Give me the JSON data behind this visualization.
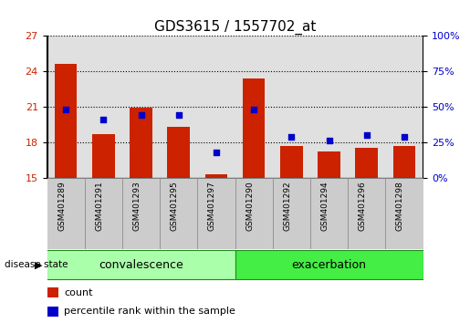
{
  "title": "GDS3615 / 1557702_at",
  "samples": [
    "GSM401289",
    "GSM401291",
    "GSM401293",
    "GSM401295",
    "GSM401297",
    "GSM401290",
    "GSM401292",
    "GSM401294",
    "GSM401296",
    "GSM401298"
  ],
  "count_values": [
    24.6,
    18.7,
    20.9,
    19.3,
    15.3,
    23.4,
    17.7,
    17.2,
    17.5,
    17.7
  ],
  "percentile_values": [
    48,
    41,
    44,
    44,
    18,
    48,
    29,
    26,
    30,
    29
  ],
  "groups": [
    {
      "label": "convalescence",
      "start": 0,
      "end": 5
    },
    {
      "label": "exacerbation",
      "start": 5,
      "end": 10
    }
  ],
  "ylim_left": [
    15,
    27
  ],
  "ylim_right": [
    0,
    100
  ],
  "yticks_left": [
    15,
    18,
    21,
    24,
    27
  ],
  "yticks_right": [
    0,
    25,
    50,
    75,
    100
  ],
  "bar_color": "#cc2200",
  "dot_color": "#0000cc",
  "bar_width": 0.6,
  "group_color_conv": "#aaffaa",
  "group_color_exac": "#44ee44",
  "group_border_color": "#228822",
  "col_bg_color": "#cccccc",
  "legend_items": [
    "count",
    "percentile rank within the sample"
  ],
  "disease_state_label": "disease state",
  "title_fontsize": 11,
  "tick_fontsize": 8,
  "label_fontsize": 9,
  "legend_fontsize": 8
}
